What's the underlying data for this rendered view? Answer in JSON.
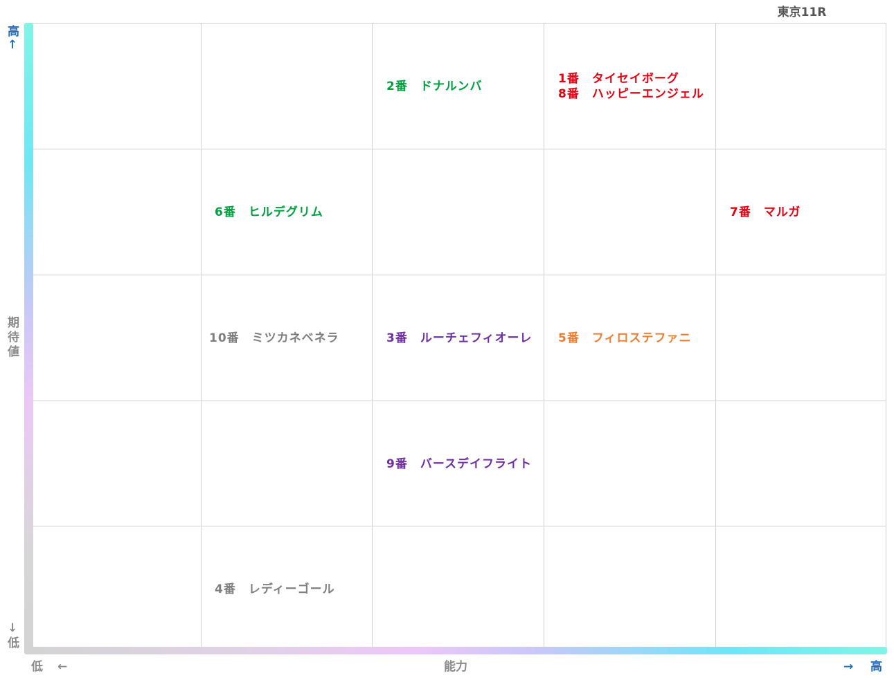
{
  "title": "東京11R",
  "axes": {
    "y": {
      "high": "高",
      "high_arrow": "↑",
      "label": [
        "期",
        "待",
        "値"
      ],
      "low_arrow": "↓",
      "low": "低"
    },
    "x": {
      "low": "低",
      "low_arrow": "←",
      "label": "能力",
      "high_arrow": "→",
      "high": "高"
    }
  },
  "colors": {
    "green": "#00a040",
    "red": "#e60012",
    "purple": "#7030a0",
    "orange": "#ed7d31",
    "grey": "#7f7f7f"
  },
  "horses": [
    {
      "label": "2番　ドナルンバ",
      "color": "green"
    },
    {
      "label": "1番　タイセイボーグ",
      "color": "red"
    },
    {
      "label": "8番　ハッピーエンジェル",
      "color": "red"
    },
    {
      "label": "6番　ヒルデグリム",
      "color": "green"
    },
    {
      "label": "7番　マルガ",
      "color": "red"
    },
    {
      "label": "10番　ミツカネベネラ",
      "color": "grey"
    },
    {
      "label": "3番　ルーチェフィオーレ",
      "color": "purple"
    },
    {
      "label": "5番　フィロステファニ",
      "color": "orange"
    },
    {
      "label": "9番　バースデイフライト",
      "color": "purple"
    },
    {
      "label": "4番　レディーゴール",
      "color": "grey"
    }
  ]
}
